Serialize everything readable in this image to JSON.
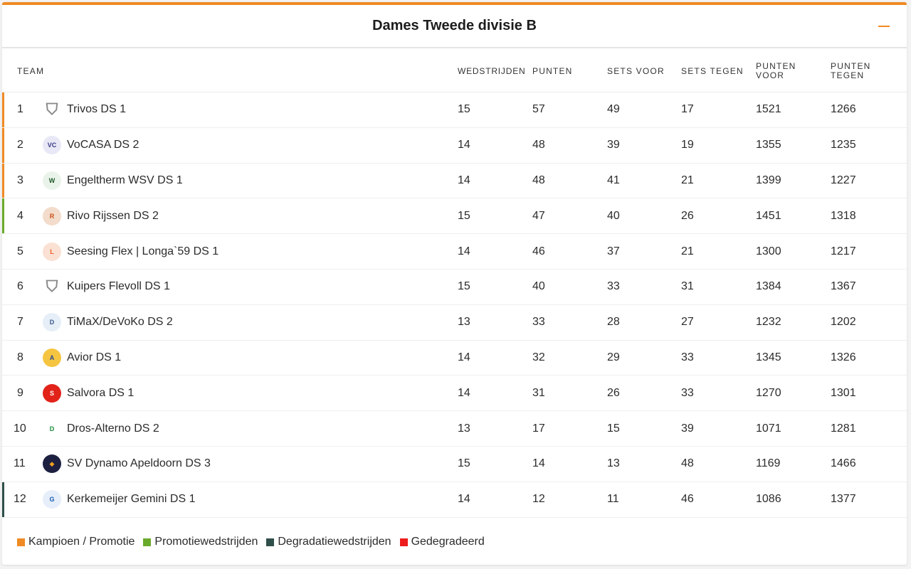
{
  "title": "Dames Tweede divisie B",
  "columns": {
    "team": "TEAM",
    "wedstrijden": "WEDSTRIJDEN",
    "punten": "PUNTEN",
    "sets_voor": "SETS VOOR",
    "sets_tegen": "SETS TEGEN",
    "punten_voor": "PUNTEN VOOR",
    "punten_tegen": "PUNTEN TEGEN"
  },
  "rows": [
    {
      "rank": "1",
      "team": "Trivos DS 1",
      "w": "15",
      "p": "57",
      "sv": "49",
      "st": "17",
      "pv": "1521",
      "pt": "1266",
      "status": "kampioen",
      "logo": "shield-icon"
    },
    {
      "rank": "2",
      "team": "VoCASA DS 2",
      "w": "14",
      "p": "48",
      "sv": "39",
      "st": "19",
      "pv": "1355",
      "pt": "1235",
      "status": "kampioen",
      "logo": "vocasa-logo"
    },
    {
      "rank": "3",
      "team": "Engeltherm WSV DS 1",
      "w": "14",
      "p": "48",
      "sv": "41",
      "st": "21",
      "pv": "1399",
      "pt": "1227",
      "status": "kampioen",
      "logo": "wsv-logo"
    },
    {
      "rank": "4",
      "team": "Rivo Rijssen DS 2",
      "w": "15",
      "p": "47",
      "sv": "40",
      "st": "26",
      "pv": "1451",
      "pt": "1318",
      "status": "promotie",
      "logo": "rivo-logo"
    },
    {
      "rank": "5",
      "team": "Seesing Flex | Longa`59 DS 1",
      "w": "14",
      "p": "46",
      "sv": "37",
      "st": "21",
      "pv": "1300",
      "pt": "1217",
      "status": "",
      "logo": "longa-logo"
    },
    {
      "rank": "6",
      "team": "Kuipers Flevoll DS 1",
      "w": "15",
      "p": "40",
      "sv": "33",
      "st": "31",
      "pv": "1384",
      "pt": "1367",
      "status": "",
      "logo": "shield-icon"
    },
    {
      "rank": "7",
      "team": "TiMaX/DeVoKo DS 2",
      "w": "13",
      "p": "33",
      "sv": "28",
      "st": "27",
      "pv": "1232",
      "pt": "1202",
      "status": "",
      "logo": "devoko-logo"
    },
    {
      "rank": "8",
      "team": "Avior DS 1",
      "w": "14",
      "p": "32",
      "sv": "29",
      "st": "33",
      "pv": "1345",
      "pt": "1326",
      "status": "",
      "logo": "avior-logo"
    },
    {
      "rank": "9",
      "team": "Salvora DS 1",
      "w": "14",
      "p": "31",
      "sv": "26",
      "st": "33",
      "pv": "1270",
      "pt": "1301",
      "status": "",
      "logo": "salvora-logo"
    },
    {
      "rank": "10",
      "team": "Dros-Alterno DS 2",
      "w": "13",
      "p": "17",
      "sv": "15",
      "st": "39",
      "pv": "1071",
      "pt": "1281",
      "status": "",
      "logo": "dros-logo"
    },
    {
      "rank": "11",
      "team": "SV Dynamo Apeldoorn DS 3",
      "w": "15",
      "p": "14",
      "sv": "13",
      "st": "48",
      "pv": "1169",
      "pt": "1466",
      "status": "",
      "logo": "dynamo-logo"
    },
    {
      "rank": "12",
      "team": "Kerkemeijer Gemini DS 1",
      "w": "14",
      "p": "12",
      "sv": "11",
      "st": "46",
      "pv": "1086",
      "pt": "1377",
      "status": "degradatie",
      "logo": "gemini-logo"
    }
  ],
  "legend": [
    {
      "label": "Kampioen / Promotie",
      "color": "#f08a24"
    },
    {
      "label": "Promotiewedstrijden",
      "color": "#6aaa2a"
    },
    {
      "label": "Degradatiewedstrijden",
      "color": "#2f4f4a"
    },
    {
      "label": "Gedegradeerd",
      "color": "#ee1c1c"
    }
  ],
  "status_colors": {
    "kampioen": "#f08a24",
    "promotie": "#6aaa2a",
    "degradatie": "#2f4f4a"
  }
}
